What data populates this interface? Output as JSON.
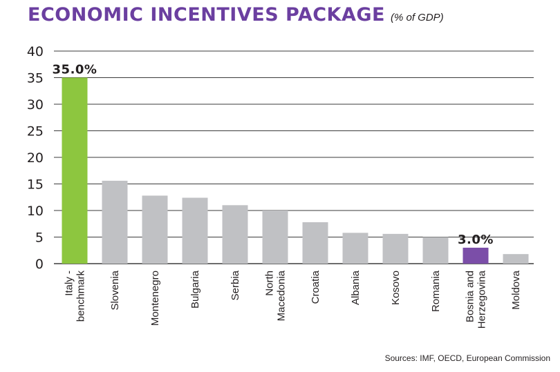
{
  "title": "ECONOMIC INCENTIVES PACKAGE",
  "subtitle": "(% of GDP)",
  "source": "Sources: IMF, OECD, European Commission",
  "colors": {
    "title": "#6b3fa0",
    "bar_default": "#c0c1c4",
    "benchmark": "#8dc63f",
    "highlight": "#7b4ea8",
    "grid": "#3a3a3a"
  },
  "chart_data": {
    "type": "bar",
    "categories": [
      [
        "Italy -",
        "benchmark"
      ],
      [
        "Slovenia"
      ],
      [
        "Montenegro"
      ],
      [
        "Bulgaria"
      ],
      [
        "Serbia"
      ],
      [
        "North",
        "Macedonia"
      ],
      [
        "Croatia"
      ],
      [
        "Albania"
      ],
      [
        "Kosovo"
      ],
      [
        "Romania"
      ],
      [
        "Bosnia and",
        "Herzegovina"
      ],
      [
        "Moldova"
      ]
    ],
    "values": [
      35.0,
      15.6,
      12.8,
      12.4,
      11.0,
      10.0,
      7.8,
      5.8,
      5.6,
      5.0,
      3.0,
      1.8
    ],
    "bar_colors": [
      "benchmark",
      "default",
      "default",
      "default",
      "default",
      "default",
      "default",
      "default",
      "default",
      "default",
      "highlight",
      "default"
    ],
    "data_labels": [
      {
        "index": 0,
        "text": "35.0%"
      },
      {
        "index": 10,
        "text": "3.0%"
      }
    ],
    "yticks": [
      0,
      5,
      10,
      15,
      20,
      25,
      30,
      35,
      40
    ],
    "ylim": [
      0,
      40
    ],
    "grid": true,
    "legend": "none"
  }
}
